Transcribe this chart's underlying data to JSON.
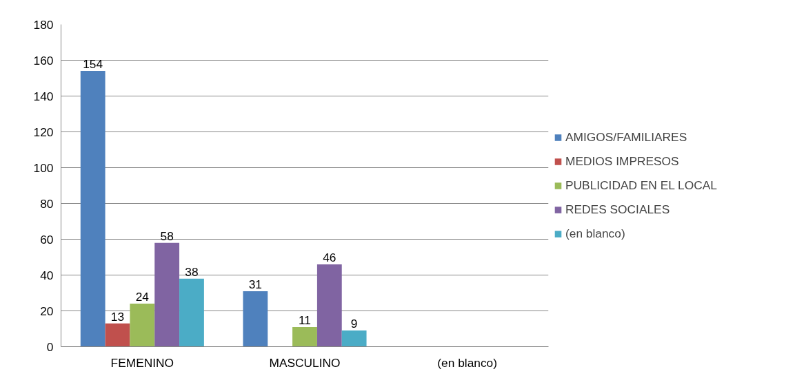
{
  "chart_data": {
    "type": "bar",
    "categories": [
      "FEMENINO",
      "MASCULINO",
      "(en blanco)"
    ],
    "series": [
      {
        "name": "AMIGOS/FAMILIARES",
        "color": "#4f81bd",
        "values": [
          154,
          31,
          null
        ]
      },
      {
        "name": "MEDIOS IMPRESOS",
        "color": "#c0504d",
        "values": [
          13,
          null,
          null
        ]
      },
      {
        "name": "PUBLICIDAD EN EL LOCAL",
        "color": "#9bbb59",
        "values": [
          24,
          11,
          null
        ]
      },
      {
        "name": "REDES SOCIALES",
        "color": "#8064a2",
        "values": [
          58,
          46,
          null
        ]
      },
      {
        "name": "(en blanco)",
        "color": "#4bacc6",
        "values": [
          38,
          9,
          null
        ]
      }
    ],
    "ylim": [
      0,
      180
    ],
    "yticks": [
      0,
      20,
      40,
      60,
      80,
      100,
      120,
      140,
      160,
      180
    ],
    "grid": "y",
    "legend": "right",
    "data_labels": true
  }
}
